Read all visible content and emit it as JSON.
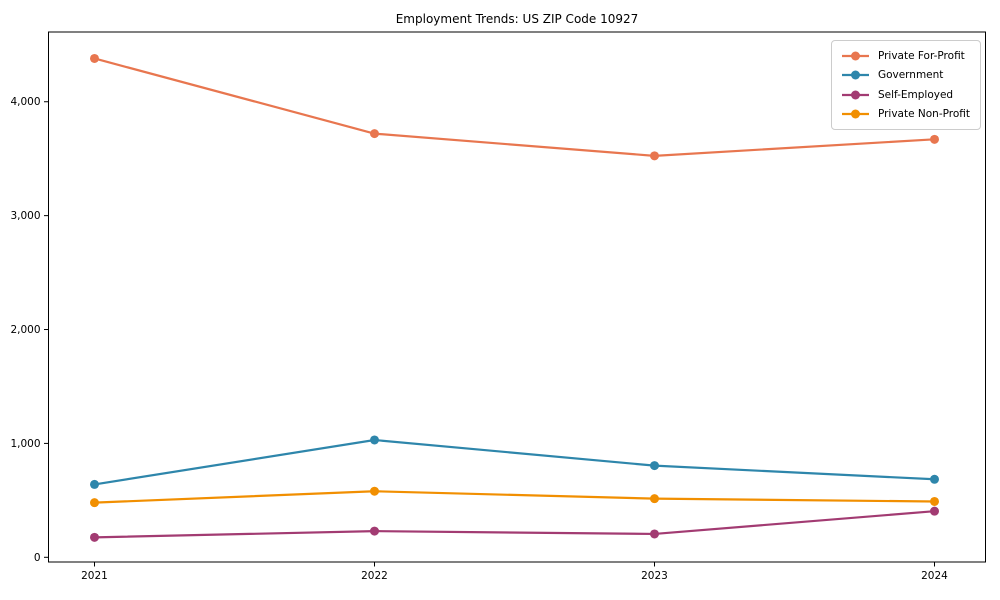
{
  "chart_data": {
    "type": "line",
    "title": "Employment Trends: US ZIP Code 10927",
    "xlabel": "",
    "ylabel": "",
    "categories": [
      "2021",
      "2022",
      "2023",
      "2024"
    ],
    "series": [
      {
        "name": "Private For-Profit",
        "color": "#E8764F",
        "values": [
          4380,
          3720,
          3525,
          3670
        ]
      },
      {
        "name": "Government",
        "color": "#2E86AB",
        "values": [
          640,
          1030,
          805,
          685
        ]
      },
      {
        "name": "Self-Employed",
        "color": "#A23B72",
        "values": [
          175,
          230,
          205,
          405
        ]
      },
      {
        "name": "Private Non-Profit",
        "color": "#F18F01",
        "values": [
          480,
          580,
          515,
          490
        ]
      }
    ],
    "yticks": [
      0,
      1000,
      2000,
      3000,
      4000
    ],
    "ytick_labels": [
      "0",
      "1,000",
      "2,000",
      "3,000",
      "4,000"
    ],
    "ylim": [
      -40,
      4615
    ],
    "grid": false,
    "legend_position": "upper right",
    "marker": "circle",
    "plot_bg": "#ffffff",
    "spine_color": "#000000"
  }
}
